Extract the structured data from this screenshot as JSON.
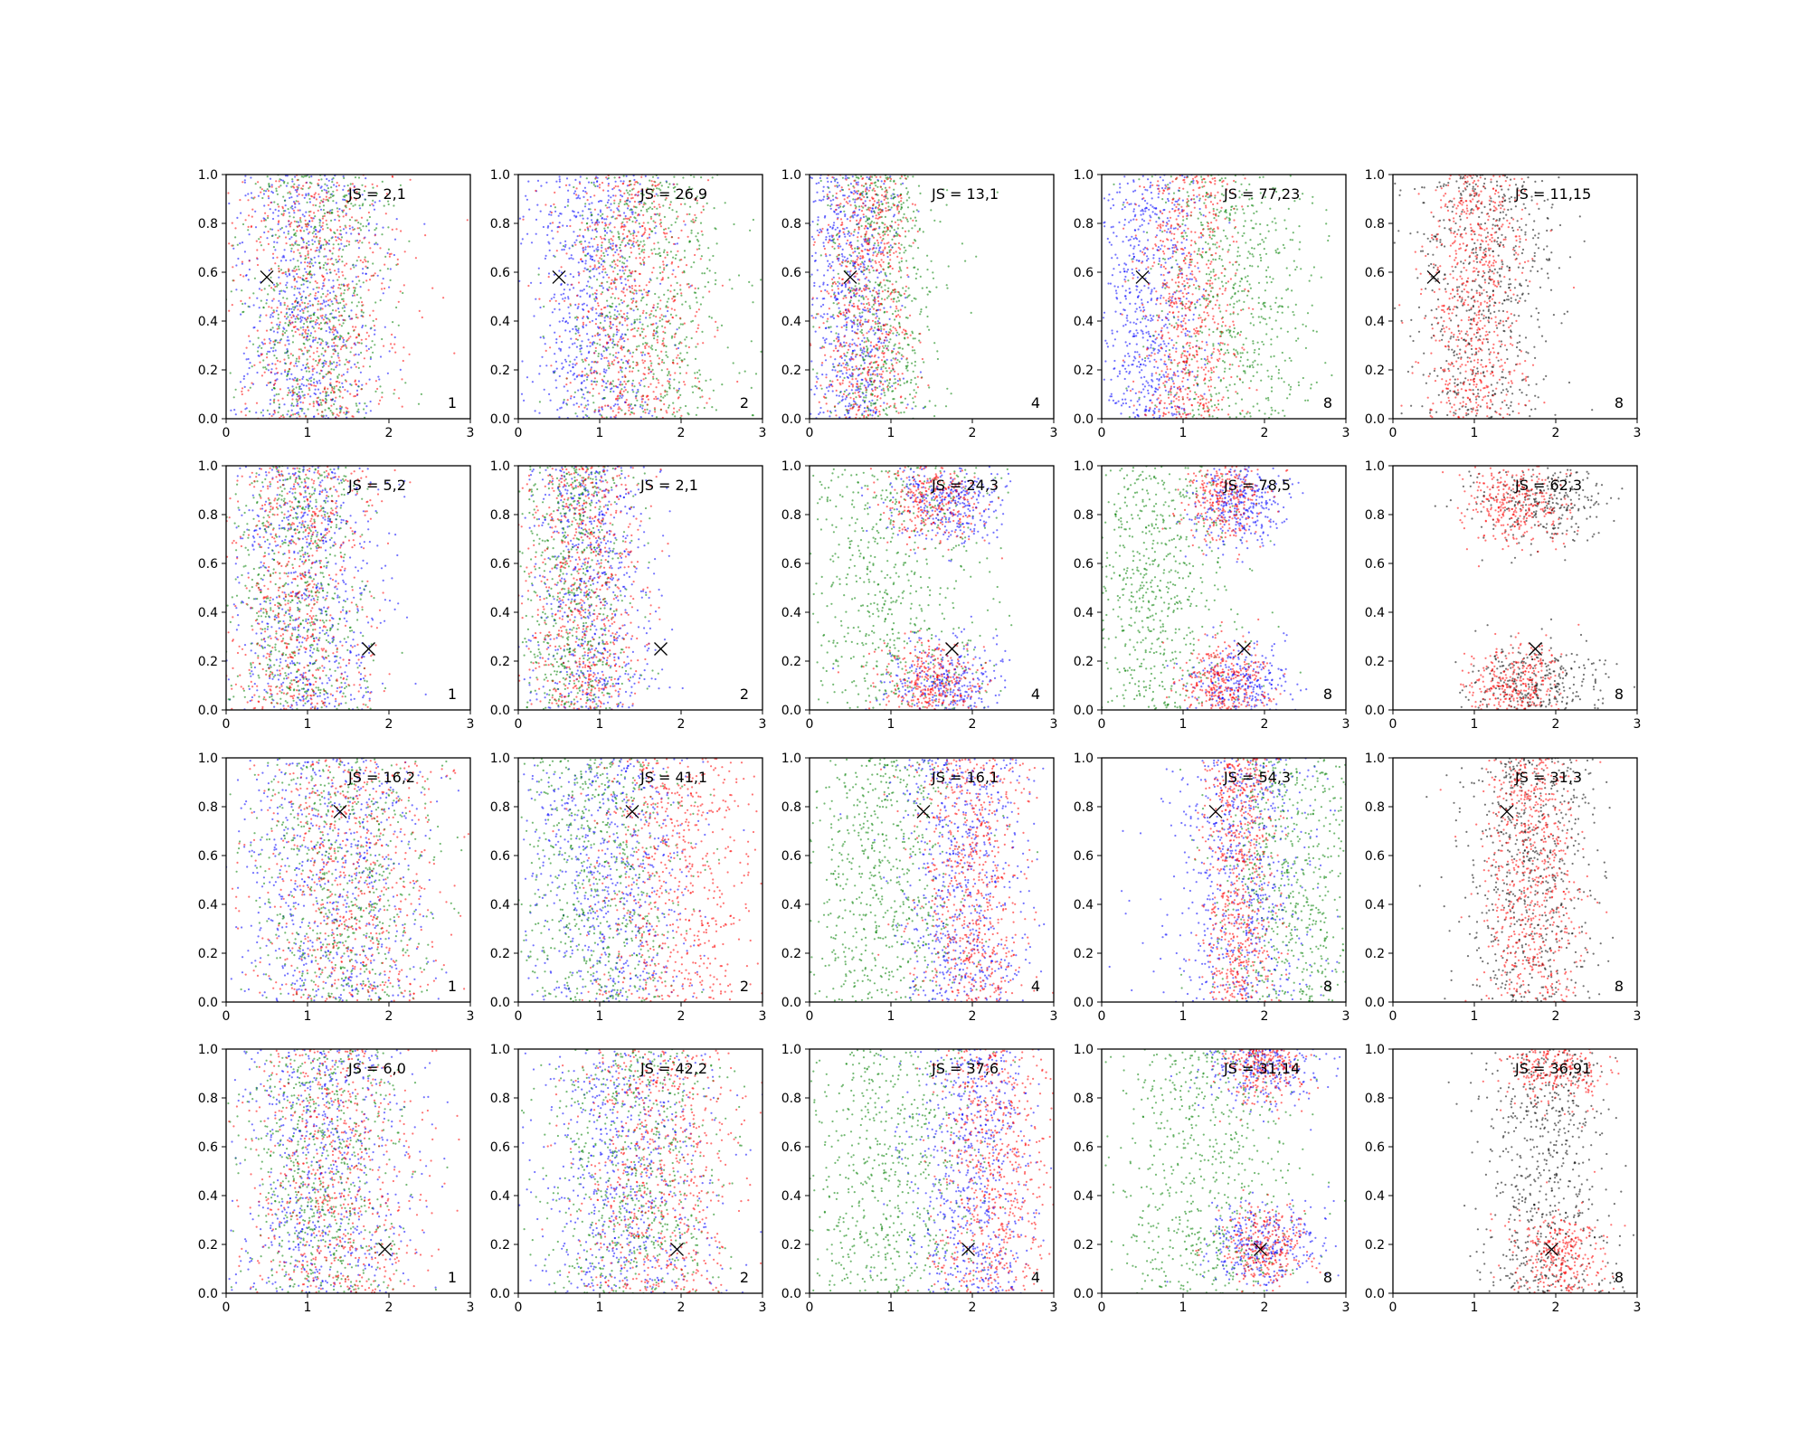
{
  "figure": {
    "colors": {
      "blue": "#0000ff",
      "green": "#008000",
      "red": "#ff0000",
      "black": "#000000",
      "marker": "#000000"
    },
    "x_ticks": [
      0,
      1,
      2,
      3
    ],
    "y_ticks": [
      0.0,
      0.2,
      0.4,
      0.6,
      0.8,
      1.0
    ],
    "x_tick_labels": [
      "0",
      "1",
      "2",
      "3"
    ],
    "y_tick_labels": [
      "0.0",
      "0.2",
      "0.4",
      "0.6",
      "0.8",
      "1.0"
    ]
  },
  "chart_data": [
    {
      "type": "scatter",
      "row": 0,
      "col": 0,
      "xlim": [
        0,
        3
      ],
      "ylim": [
        0,
        1
      ],
      "annotation": "JS = 2,1",
      "corner_label": "1",
      "marker": {
        "x": 0.5,
        "y": 0.58,
        "symbol": "x"
      },
      "series": [
        {
          "color": "blue",
          "x_center": 1.0,
          "x_spread": 0.45
        },
        {
          "color": "green",
          "x_center": 1.1,
          "x_spread": 0.45
        },
        {
          "color": "red",
          "x_center": 1.1,
          "x_spread": 0.5
        }
      ]
    },
    {
      "type": "scatter",
      "row": 0,
      "col": 1,
      "xlim": [
        0,
        3
      ],
      "ylim": [
        0,
        1
      ],
      "annotation": "JS = 26,9",
      "corner_label": "2",
      "marker": {
        "x": 0.5,
        "y": 0.58,
        "symbol": "x"
      },
      "series": [
        {
          "color": "blue",
          "x_center": 0.9,
          "x_spread": 0.4
        },
        {
          "color": "green",
          "x_center": 1.6,
          "x_spread": 0.5
        },
        {
          "color": "red",
          "x_center": 1.4,
          "x_spread": 0.45
        }
      ]
    },
    {
      "type": "scatter",
      "row": 0,
      "col": 2,
      "xlim": [
        0,
        3
      ],
      "ylim": [
        0,
        1
      ],
      "annotation": "JS = 13,1",
      "corner_label": "4",
      "marker": {
        "x": 0.5,
        "y": 0.58,
        "symbol": "x"
      },
      "series": [
        {
          "color": "blue",
          "x_center": 0.5,
          "x_spread": 0.3
        },
        {
          "color": "green",
          "x_center": 0.9,
          "x_spread": 0.35
        },
        {
          "color": "red",
          "x_center": 0.7,
          "x_spread": 0.3
        }
      ]
    },
    {
      "type": "scatter",
      "row": 0,
      "col": 3,
      "xlim": [
        0,
        3
      ],
      "ylim": [
        0,
        1
      ],
      "annotation": "JS = 77,23",
      "corner_label": "8",
      "marker": {
        "x": 0.5,
        "y": 0.58,
        "symbol": "x"
      },
      "series": [
        {
          "color": "blue",
          "x_center": 0.6,
          "x_spread": 0.35
        },
        {
          "color": "green",
          "x_center": 1.6,
          "x_spread": 0.5
        },
        {
          "color": "red",
          "x_center": 1.1,
          "x_spread": 0.3
        }
      ]
    },
    {
      "type": "scatter",
      "row": 0,
      "col": 4,
      "xlim": [
        0,
        3
      ],
      "ylim": [
        0,
        1
      ],
      "annotation": "JS = 11,15",
      "corner_label": "8",
      "marker": {
        "x": 0.5,
        "y": 0.58,
        "symbol": "x"
      },
      "series": [
        {
          "color": "black",
          "x_center": 1.1,
          "x_spread": 0.45
        },
        {
          "color": "red",
          "x_center": 1.0,
          "x_spread": 0.3
        }
      ]
    },
    {
      "type": "scatter",
      "row": 1,
      "col": 0,
      "xlim": [
        0,
        3
      ],
      "ylim": [
        0,
        1
      ],
      "annotation": "JS = 5,2",
      "corner_label": "1",
      "marker": {
        "x": 1.75,
        "y": 0.25,
        "symbol": "x"
      },
      "series": [
        {
          "color": "blue",
          "x_center": 1.0,
          "x_spread": 0.45
        },
        {
          "color": "green",
          "x_center": 0.9,
          "x_spread": 0.4
        },
        {
          "color": "red",
          "x_center": 0.9,
          "x_spread": 0.45
        }
      ]
    },
    {
      "type": "scatter",
      "row": 1,
      "col": 1,
      "xlim": [
        0,
        3
      ],
      "ylim": [
        0,
        1
      ],
      "annotation": "JS = 2,1",
      "corner_label": "2",
      "marker": {
        "x": 1.75,
        "y": 0.25,
        "symbol": "x"
      },
      "series": [
        {
          "color": "blue",
          "x_center": 0.9,
          "x_spread": 0.4
        },
        {
          "color": "green",
          "x_center": 0.7,
          "x_spread": 0.35
        },
        {
          "color": "red",
          "x_center": 0.8,
          "x_spread": 0.35
        }
      ]
    },
    {
      "type": "scatter",
      "row": 1,
      "col": 2,
      "xlim": [
        0,
        3
      ],
      "ylim": [
        0,
        1
      ],
      "annotation": "JS = 24,3",
      "corner_label": "4",
      "marker": {
        "x": 1.75,
        "y": 0.25,
        "symbol": "x"
      },
      "series": [
        {
          "color": "green",
          "x_center": 1.0,
          "x_spread": 0.6
        },
        {
          "color": "blue",
          "x_center": 1.7,
          "x_spread": 0.35,
          "y_modes": [
            0.85,
            0.1
          ]
        },
        {
          "color": "red",
          "x_center": 1.5,
          "x_spread": 0.3,
          "y_modes": [
            0.85,
            0.1
          ]
        }
      ]
    },
    {
      "type": "scatter",
      "row": 1,
      "col": 3,
      "xlim": [
        0,
        3
      ],
      "ylim": [
        0,
        1
      ],
      "annotation": "JS = 78,5",
      "corner_label": "8",
      "marker": {
        "x": 1.75,
        "y": 0.25,
        "symbol": "x"
      },
      "series": [
        {
          "color": "green",
          "x_center": 0.7,
          "x_spread": 0.45
        },
        {
          "color": "blue",
          "x_center": 1.7,
          "x_spread": 0.3,
          "y_modes": [
            0.85,
            0.1
          ]
        },
        {
          "color": "red",
          "x_center": 1.5,
          "x_spread": 0.25,
          "y_modes": [
            0.85,
            0.1
          ]
        }
      ]
    },
    {
      "type": "scatter",
      "row": 1,
      "col": 4,
      "xlim": [
        0,
        3
      ],
      "ylim": [
        0,
        1
      ],
      "annotation": "JS = 62,3",
      "corner_label": "8",
      "marker": {
        "x": 1.75,
        "y": 0.25,
        "symbol": "x"
      },
      "series": [
        {
          "color": "black",
          "x_center": 1.8,
          "x_spread": 0.4,
          "y_modes": [
            0.85,
            0.1
          ]
        },
        {
          "color": "red",
          "x_center": 1.5,
          "x_spread": 0.3,
          "y_modes": [
            0.85,
            0.1
          ]
        }
      ]
    },
    {
      "type": "scatter",
      "row": 2,
      "col": 0,
      "xlim": [
        0,
        3
      ],
      "ylim": [
        0,
        1
      ],
      "annotation": "JS = 16,2",
      "corner_label": "1",
      "marker": {
        "x": 1.4,
        "y": 0.78,
        "symbol": "x"
      },
      "series": [
        {
          "color": "blue",
          "x_center": 1.3,
          "x_spread": 0.6
        },
        {
          "color": "green",
          "x_center": 1.4,
          "x_spread": 0.55
        },
        {
          "color": "red",
          "x_center": 1.5,
          "x_spread": 0.6
        }
      ]
    },
    {
      "type": "scatter",
      "row": 2,
      "col": 1,
      "xlim": [
        0,
        3
      ],
      "ylim": [
        0,
        1
      ],
      "annotation": "JS = 41,1",
      "corner_label": "2",
      "marker": {
        "x": 1.4,
        "y": 0.78,
        "symbol": "x"
      },
      "series": [
        {
          "color": "blue",
          "x_center": 1.1,
          "x_spread": 0.55
        },
        {
          "color": "green",
          "x_center": 1.0,
          "x_spread": 0.5
        },
        {
          "color": "red",
          "x_center": 1.9,
          "x_spread": 0.5
        }
      ]
    },
    {
      "type": "scatter",
      "row": 2,
      "col": 2,
      "xlim": [
        0,
        3
      ],
      "ylim": [
        0,
        1
      ],
      "annotation": "JS = 16,1",
      "corner_label": "4",
      "marker": {
        "x": 1.4,
        "y": 0.78,
        "symbol": "x"
      },
      "series": [
        {
          "color": "green",
          "x_center": 0.9,
          "x_spread": 0.5
        },
        {
          "color": "blue",
          "x_center": 1.9,
          "x_spread": 0.4
        },
        {
          "color": "red",
          "x_center": 2.0,
          "x_spread": 0.35
        }
      ]
    },
    {
      "type": "scatter",
      "row": 2,
      "col": 3,
      "xlim": [
        0,
        3
      ],
      "ylim": [
        0,
        1
      ],
      "annotation": "JS = 54,3",
      "corner_label": "8",
      "marker": {
        "x": 1.4,
        "y": 0.78,
        "symbol": "x"
      },
      "series": [
        {
          "color": "green",
          "x_center": 2.3,
          "x_spread": 0.45
        },
        {
          "color": "blue",
          "x_center": 1.7,
          "x_spread": 0.45
        },
        {
          "color": "red",
          "x_center": 1.7,
          "x_spread": 0.22
        }
      ]
    },
    {
      "type": "scatter",
      "row": 2,
      "col": 4,
      "xlim": [
        0,
        3
      ],
      "ylim": [
        0,
        1
      ],
      "annotation": "JS = 31,3",
      "corner_label": "8",
      "marker": {
        "x": 1.4,
        "y": 0.78,
        "symbol": "x"
      },
      "series": [
        {
          "color": "black",
          "x_center": 1.7,
          "x_spread": 0.4
        },
        {
          "color": "red",
          "x_center": 1.7,
          "x_spread": 0.3
        }
      ]
    },
    {
      "type": "scatter",
      "row": 3,
      "col": 0,
      "xlim": [
        0,
        3
      ],
      "ylim": [
        0,
        1
      ],
      "annotation": "JS = 6,0",
      "corner_label": "1",
      "marker": {
        "x": 1.95,
        "y": 0.18,
        "symbol": "x"
      },
      "series": [
        {
          "color": "blue",
          "x_center": 1.2,
          "x_spread": 0.55
        },
        {
          "color": "green",
          "x_center": 1.2,
          "x_spread": 0.5
        },
        {
          "color": "red",
          "x_center": 1.3,
          "x_spread": 0.55
        }
      ]
    },
    {
      "type": "scatter",
      "row": 3,
      "col": 1,
      "xlim": [
        0,
        3
      ],
      "ylim": [
        0,
        1
      ],
      "annotation": "JS = 42,2",
      "corner_label": "2",
      "marker": {
        "x": 1.95,
        "y": 0.18,
        "symbol": "x"
      },
      "series": [
        {
          "color": "blue",
          "x_center": 1.3,
          "x_spread": 0.55
        },
        {
          "color": "green",
          "x_center": 1.4,
          "x_spread": 0.55
        },
        {
          "color": "red",
          "x_center": 1.7,
          "x_spread": 0.5
        }
      ]
    },
    {
      "type": "scatter",
      "row": 3,
      "col": 2,
      "xlim": [
        0,
        3
      ],
      "ylim": [
        0,
        1
      ],
      "annotation": "JS = 37,6",
      "corner_label": "4",
      "marker": {
        "x": 1.95,
        "y": 0.18,
        "symbol": "x"
      },
      "series": [
        {
          "color": "green",
          "x_center": 1.0,
          "x_spread": 0.55
        },
        {
          "color": "blue",
          "x_center": 2.0,
          "x_spread": 0.4
        },
        {
          "color": "red",
          "x_center": 2.3,
          "x_spread": 0.35
        }
      ]
    },
    {
      "type": "scatter",
      "row": 3,
      "col": 3,
      "xlim": [
        0,
        3
      ],
      "ylim": [
        0,
        1
      ],
      "annotation": "JS = 31,14",
      "corner_label": "8",
      "marker": {
        "x": 1.95,
        "y": 0.18,
        "symbol": "x"
      },
      "series": [
        {
          "color": "green",
          "x_center": 1.3,
          "x_spread": 0.55
        },
        {
          "color": "blue",
          "x_center": 2.0,
          "x_spread": 0.35,
          "y_modes": [
            0.2,
            0.95
          ]
        },
        {
          "color": "red",
          "x_center": 2.0,
          "x_spread": 0.25,
          "y_modes": [
            0.18,
            0.95
          ]
        }
      ]
    },
    {
      "type": "scatter",
      "row": 3,
      "col": 4,
      "xlim": [
        0,
        3
      ],
      "ylim": [
        0,
        1
      ],
      "annotation": "JS = 36,91",
      "corner_label": "8",
      "marker": {
        "x": 1.95,
        "y": 0.18,
        "symbol": "x"
      },
      "series": [
        {
          "color": "black",
          "x_center": 1.9,
          "x_spread": 0.4
        },
        {
          "color": "red",
          "x_center": 2.0,
          "x_spread": 0.3,
          "y_modes": [
            0.15,
            0.95
          ]
        }
      ]
    }
  ]
}
